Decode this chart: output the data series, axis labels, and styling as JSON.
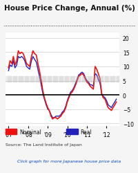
{
  "title": "House Price Change, Annual (%)",
  "background_color": "#f5f5f5",
  "plot_bg_color": "#ffffff",
  "ylabel_right": true,
  "yticks": [
    -10,
    -5,
    0,
    5,
    10,
    15,
    20
  ],
  "ylim": [
    -11,
    22
  ],
  "source_text": "Source: The Land Institute of Japan",
  "link_text": "Click graph for more Japanese house price data",
  "legend_nominal": "Nominal",
  "legend_real": "Real",
  "nominal_color": "#ee1111",
  "real_color": "#2222bb",
  "xtick_labels": [
    "'07",
    "'08",
    "'09",
    "'10",
    "'11",
    "'12"
  ],
  "nominal_x": [
    2007.0,
    2007.08,
    2007.17,
    2007.25,
    2007.33,
    2007.42,
    2007.5,
    2007.58,
    2007.67,
    2007.75,
    2007.83,
    2007.92,
    2008.0,
    2008.08,
    2008.17,
    2008.25,
    2008.33,
    2008.42,
    2008.5,
    2008.58,
    2008.67,
    2008.75,
    2008.83,
    2008.92,
    2009.0,
    2009.08,
    2009.17,
    2009.25,
    2009.33,
    2009.42,
    2009.5,
    2009.58,
    2009.67,
    2009.75,
    2009.83,
    2009.92,
    2010.0,
    2010.08,
    2010.17,
    2010.25,
    2010.33,
    2010.42,
    2010.5,
    2010.58,
    2010.67,
    2010.75,
    2010.83,
    2010.92,
    2011.0,
    2011.08,
    2011.17,
    2011.25,
    2011.33,
    2011.42,
    2011.5,
    2011.58,
    2011.67,
    2011.75,
    2011.83,
    2011.92,
    2012.0,
    2012.08,
    2012.17,
    2012.25,
    2012.33,
    2012.42,
    2012.5
  ],
  "nominal_y": [
    9.5,
    12.0,
    11.0,
    13.5,
    10.5,
    12.0,
    15.5,
    14.5,
    15.0,
    14.5,
    13.0,
    11.0,
    10.5,
    10.0,
    13.5,
    15.5,
    14.5,
    14.0,
    11.0,
    8.5,
    5.0,
    1.5,
    -1.0,
    -3.0,
    -4.5,
    -5.5,
    -7.5,
    -8.5,
    -8.0,
    -8.0,
    -8.5,
    -8.0,
    -7.5,
    -6.5,
    -6.0,
    -4.5,
    -2.5,
    -1.0,
    0.5,
    1.0,
    2.0,
    3.5,
    5.0,
    6.5,
    7.0,
    7.5,
    7.0,
    5.5,
    4.5,
    4.0,
    3.0,
    2.5,
    2.0,
    10.0,
    9.0,
    7.5,
    5.5,
    0.5,
    -1.0,
    -1.5,
    -3.0,
    -4.5,
    -5.0,
    -5.5,
    -4.5,
    -3.5,
    -2.5
  ],
  "real_x": [
    2007.0,
    2007.08,
    2007.17,
    2007.25,
    2007.33,
    2007.42,
    2007.5,
    2007.58,
    2007.67,
    2007.75,
    2007.83,
    2007.92,
    2008.0,
    2008.08,
    2008.17,
    2008.25,
    2008.33,
    2008.42,
    2008.5,
    2008.58,
    2008.67,
    2008.75,
    2008.83,
    2008.92,
    2009.0,
    2009.08,
    2009.17,
    2009.25,
    2009.33,
    2009.42,
    2009.5,
    2009.58,
    2009.67,
    2009.75,
    2009.83,
    2009.92,
    2010.0,
    2010.08,
    2010.17,
    2010.25,
    2010.33,
    2010.42,
    2010.5,
    2010.58,
    2010.67,
    2010.75,
    2010.83,
    2010.92,
    2011.0,
    2011.08,
    2011.17,
    2011.25,
    2011.33,
    2011.42,
    2011.5,
    2011.58,
    2011.67,
    2011.75,
    2011.83,
    2011.92,
    2012.0,
    2012.08,
    2012.17,
    2012.25,
    2012.33,
    2012.42,
    2012.5
  ],
  "real_y": [
    8.5,
    10.5,
    10.0,
    12.0,
    9.5,
    10.5,
    13.5,
    13.0,
    13.5,
    13.0,
    12.0,
    10.0,
    9.5,
    9.0,
    12.0,
    13.5,
    12.5,
    11.5,
    9.0,
    6.5,
    3.5,
    0.5,
    -1.5,
    -3.5,
    -5.0,
    -5.5,
    -7.0,
    -8.0,
    -8.0,
    -7.5,
    -7.5,
    -7.5,
    -7.0,
    -6.0,
    -5.5,
    -4.0,
    -2.0,
    -0.5,
    1.0,
    1.5,
    2.5,
    4.0,
    5.5,
    7.0,
    7.5,
    8.0,
    7.5,
    6.0,
    5.0,
    4.5,
    3.5,
    3.5,
    3.0,
    7.5,
    7.0,
    5.5,
    4.0,
    0.5,
    -0.5,
    -1.0,
    -2.0,
    -3.5,
    -4.0,
    -4.5,
    -3.5,
    -2.5,
    -1.5
  ]
}
